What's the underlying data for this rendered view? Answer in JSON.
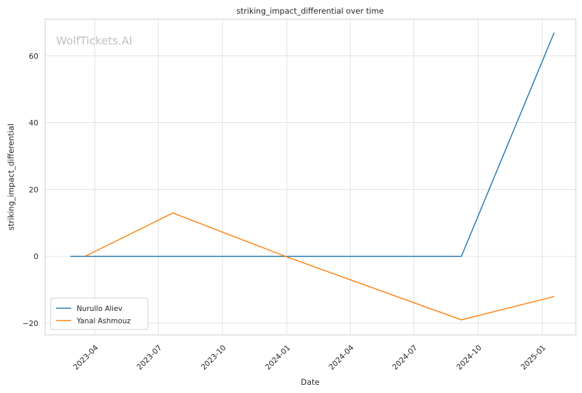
{
  "chart_data": {
    "type": "line",
    "title": "striking_impact_differential over time",
    "xlabel": "Date",
    "ylabel": "striking_impact_differential",
    "watermark": "WolfTickets.AI",
    "x_ticks": [
      "2023-04",
      "2023-07",
      "2023-10",
      "2024-01",
      "2024-04",
      "2024-07",
      "2024-10",
      "2025-01"
    ],
    "y_ticks": [
      -20,
      0,
      20,
      40,
      60
    ],
    "xlim": [
      "2023-01-20",
      "2025-02-18"
    ],
    "ylim": [
      -23.5,
      71
    ],
    "grid": true,
    "legend": "lower-left",
    "series": [
      {
        "name": "Nurullo Aliev",
        "color": "#1f77b4",
        "points": [
          {
            "x": "2023-02-25",
            "y": 0
          },
          {
            "x": "2024-09-07",
            "y": 0
          },
          {
            "x": "2025-01-18",
            "y": 67
          }
        ]
      },
      {
        "name": "Yanal Ashmouz",
        "color": "#ff7f0e",
        "points": [
          {
            "x": "2023-03-18",
            "y": 0
          },
          {
            "x": "2023-07-22",
            "y": 13
          },
          {
            "x": "2023-12-30",
            "y": 0
          },
          {
            "x": "2024-09-07",
            "y": -19
          },
          {
            "x": "2025-01-18",
            "y": -12
          }
        ]
      }
    ]
  }
}
